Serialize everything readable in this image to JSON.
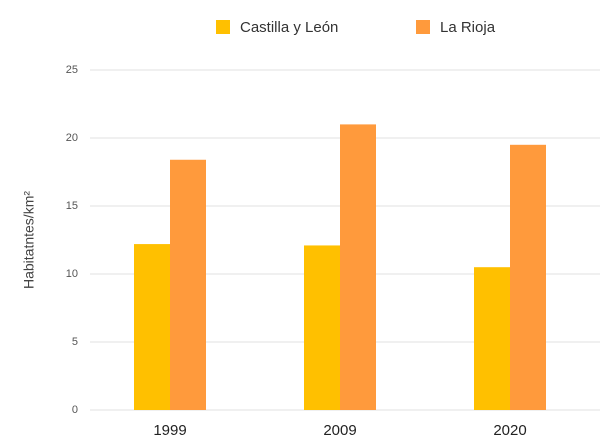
{
  "chart_data": {
    "type": "bar",
    "categories": [
      "1999",
      "2009",
      "2020"
    ],
    "series": [
      {
        "name": "Castilla y León",
        "color": "#ffc000",
        "values": [
          12.2,
          12.1,
          10.5
        ]
      },
      {
        "name": "La Rioja",
        "color": "#ff9a3c",
        "values": [
          18.4,
          21.0,
          19.5
        ]
      }
    ],
    "y_label": "Habitatntes/km²",
    "ylim": [
      0,
      25
    ],
    "yticks": [
      0,
      5,
      10,
      15,
      20,
      25
    ],
    "grid": true,
    "legend": "top"
  }
}
